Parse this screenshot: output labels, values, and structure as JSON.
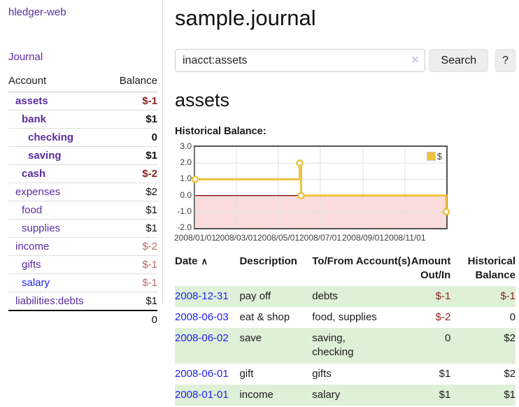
{
  "brand": "hledger-web",
  "sidebar": {
    "journal_link": "Journal",
    "header": {
      "account": "Account",
      "balance": "Balance"
    },
    "accounts": [
      {
        "name": "assets",
        "balance": "$-1"
      },
      {
        "name": "bank",
        "balance": "$1"
      },
      {
        "name": "checking",
        "balance": "0"
      },
      {
        "name": "saving",
        "balance": "$1"
      },
      {
        "name": "cash",
        "balance": "$-2"
      },
      {
        "name": "expenses",
        "balance": "$2"
      },
      {
        "name": "food",
        "balance": "$1"
      },
      {
        "name": "supplies",
        "balance": "$1"
      },
      {
        "name": "income",
        "balance": "$-2"
      },
      {
        "name": "gifts",
        "balance": "$-1"
      },
      {
        "name": "salary",
        "balance": "$-1"
      },
      {
        "name": "liabilities:debts",
        "balance": "$1"
      }
    ],
    "total": "0"
  },
  "header": {
    "title": "sample.journal"
  },
  "search": {
    "query": "inacct:assets",
    "button": "Search",
    "help_button": "?"
  },
  "icons": {
    "clear": "✕",
    "sort_asc": "∧"
  },
  "account_page": {
    "title": "assets",
    "chart_title": "Historical Balance:"
  },
  "chart_data": {
    "type": "line",
    "step": true,
    "title": "Historical Balance:",
    "series": [
      {
        "name": "$",
        "color": "#edc240",
        "points": [
          [
            "2008-01-01",
            1
          ],
          [
            "2008-06-01",
            2
          ],
          [
            "2008-06-03",
            0
          ],
          [
            "2008-12-31",
            -1
          ]
        ]
      }
    ],
    "x_range": [
      "2008-01-01",
      "2008-12-31"
    ],
    "x_ticks": [
      "2008/01/01",
      "2008/03/01",
      "2008/05/01",
      "2008/07/01",
      "2008/09/01",
      "2008/11/01"
    ],
    "y_ticks": [
      "3.0",
      "2.0",
      "1.0",
      "0.0",
      "-1.0",
      "-2.0"
    ],
    "grid_y": [
      2,
      1,
      -1
    ],
    "ylim": [
      -2,
      3
    ],
    "legend": "$",
    "legend_position": "top-right",
    "negative_region_color": "#fbdcdc",
    "zero_line_color": "#800000",
    "grid_color": "#e0e0e0"
  },
  "table": {
    "headers": {
      "date": "Date",
      "description": "Description",
      "accounts": "To/From Account(s)",
      "amount": "Amount Out/In",
      "balance": "Historical Balance"
    },
    "rows": [
      {
        "date": "2008-12-31",
        "description": "pay off",
        "accounts": "debts",
        "amount": "$-1",
        "balance": "$-1"
      },
      {
        "date": "2008-06-03",
        "description": "eat & shop",
        "accounts": "food, supplies",
        "amount": "$-2",
        "balance": "0"
      },
      {
        "date": "2008-06-02",
        "description": "save",
        "accounts": "saving,\nchecking",
        "amount": "0",
        "balance": "$2"
      },
      {
        "date": "2008-06-01",
        "description": "gift",
        "accounts": "gifts",
        "amount": "$1",
        "balance": "$2"
      },
      {
        "date": "2008-01-01",
        "description": "income",
        "accounts": "salary",
        "amount": "$1",
        "balance": "$1"
      }
    ]
  },
  "colors": {
    "link_purple": "#5a2d9e",
    "link_blue": "#2222ee",
    "negative_strong": "#8f1f1f",
    "negative_soft": "#bd6a6a",
    "row_stripe_green": "#dff0d8",
    "series_gold": "#edc240"
  }
}
